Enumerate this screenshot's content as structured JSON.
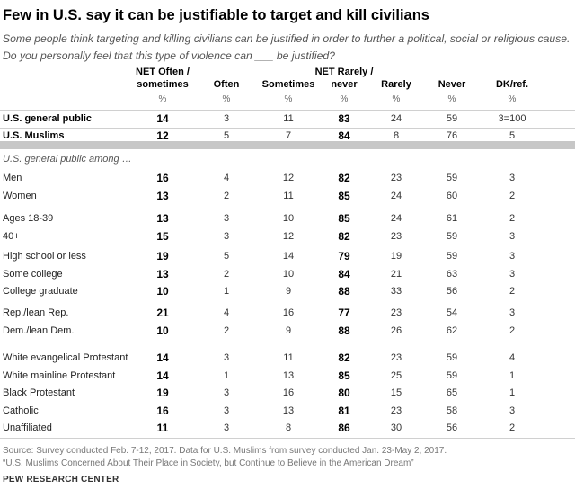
{
  "title": "Few in U.S. say it can be justifiable to target and kill civilians",
  "subtitle": "Some people think targeting and killing civilians can be justified in order to further a political, social or religious cause. Do you personally feel that this type of violence can ___ be justified?",
  "columns": [
    {
      "line1": "NET Often /",
      "line2": "sometimes"
    },
    {
      "line1": "",
      "line2": "Often"
    },
    {
      "line1": "",
      "line2": "Sometimes"
    },
    {
      "line1": "NET Rarely /",
      "line2": "never"
    },
    {
      "line1": "",
      "line2": "Rarely"
    },
    {
      "line1": "",
      "line2": "Never"
    },
    {
      "line1": "",
      "line2": "DK/ref."
    }
  ],
  "pct_label": "%",
  "main_rows": [
    {
      "label": "U.S. general public",
      "values": [
        "14",
        "3",
        "11",
        "83",
        "24",
        "59",
        "3=100"
      ]
    },
    {
      "label": "U.S. Muslims",
      "values": [
        "12",
        "5",
        "7",
        "84",
        "8",
        "76",
        "5"
      ]
    }
  ],
  "sub_label": "U.S. general public among …",
  "groups": [
    [
      {
        "label": "Men",
        "values": [
          "16",
          "4",
          "12",
          "82",
          "23",
          "59",
          "3"
        ]
      },
      {
        "label": "Women",
        "values": [
          "13",
          "2",
          "11",
          "85",
          "24",
          "60",
          "2"
        ]
      }
    ],
    [
      {
        "label": "Ages 18-39",
        "values": [
          "13",
          "3",
          "10",
          "85",
          "24",
          "61",
          "2"
        ]
      },
      {
        "label": "40+",
        "values": [
          "15",
          "3",
          "12",
          "82",
          "23",
          "59",
          "3"
        ]
      }
    ],
    [
      {
        "label": "High school or less",
        "values": [
          "19",
          "5",
          "14",
          "79",
          "19",
          "59",
          "3"
        ]
      },
      {
        "label": "Some college",
        "values": [
          "13",
          "2",
          "10",
          "84",
          "21",
          "63",
          "3"
        ]
      },
      {
        "label": "College graduate",
        "values": [
          "10",
          "1",
          "9",
          "88",
          "33",
          "56",
          "2"
        ]
      }
    ],
    [
      {
        "label": "Rep./lean Rep.",
        "values": [
          "21",
          "4",
          "16",
          "77",
          "23",
          "54",
          "3"
        ]
      },
      {
        "label": "Dem./lean Dem.",
        "values": [
          "10",
          "2",
          "9",
          "88",
          "26",
          "62",
          "2"
        ]
      }
    ],
    [
      {
        "label": "White evangelical Protestant",
        "values": [
          "14",
          "3",
          "11",
          "82",
          "23",
          "59",
          "4"
        ]
      },
      {
        "label": "White mainline Protestant",
        "values": [
          "14",
          "1",
          "13",
          "85",
          "25",
          "59",
          "1"
        ]
      },
      {
        "label": "Black Protestant",
        "values": [
          "19",
          "3",
          "16",
          "80",
          "15",
          "65",
          "1"
        ]
      },
      {
        "label": "Catholic",
        "values": [
          "16",
          "3",
          "13",
          "81",
          "23",
          "58",
          "3"
        ]
      },
      {
        "label": "Unaffiliated",
        "values": [
          "11",
          "3",
          "8",
          "86",
          "30",
          "56",
          "2"
        ]
      }
    ]
  ],
  "source_line1": "Source: Survey conducted Feb. 7-12, 2017. Data for U.S. Muslims from survey conducted Jan. 23-May 2, 2017.",
  "source_line2": "“U.S. Muslims Concerned About Their Place in Society, but Continue to Believe in the American Dream”",
  "brand": "PEW RESEARCH CENTER"
}
